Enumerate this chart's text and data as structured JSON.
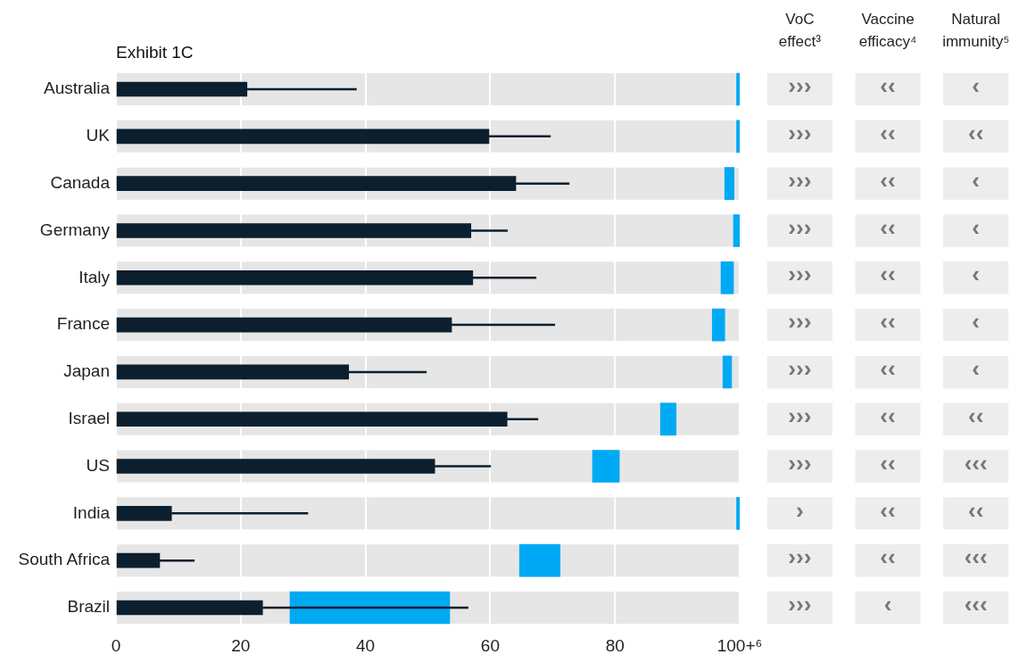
{
  "chart_data": [
    {
      "type": "bar",
      "orientation": "horizontal",
      "title": "Exhibit 1C",
      "categories": [
        "Australia",
        "UK",
        "Canada",
        "Germany",
        "Italy",
        "France",
        "Japan",
        "Israel",
        "US",
        "India",
        "South Africa",
        "Brazil"
      ],
      "series": [
        {
          "color": "#00a9f4",
          "base": [
            99.5,
            99.5,
            97.6,
            99.0,
            97.0,
            95.6,
            97.3,
            87.3,
            76.4,
            99.5,
            64.7,
            27.9
          ],
          "values": [
            0.5,
            0.5,
            1.5,
            1.0,
            2.0,
            2.0,
            1.4,
            2.5,
            4.3,
            0.5,
            6.5,
            25.6
          ]
        },
        {
          "color": "#0b1f2e",
          "values": [
            21.0,
            59.8,
            64.1,
            56.9,
            57.2,
            53.8,
            37.3,
            62.7,
            51.1,
            8.9,
            7.0,
            23.5
          ],
          "errors": [
            [
              21.0,
              38.6
            ],
            [
              59.8,
              69.7
            ],
            [
              64.1,
              72.7
            ],
            [
              56.9,
              62.8
            ],
            [
              57.2,
              67.4
            ],
            [
              53.8,
              70.4
            ],
            [
              37.3,
              49.8
            ],
            [
              62.7,
              67.7
            ],
            [
              51.1,
              60.1
            ],
            [
              8.9,
              30.8
            ],
            [
              7.0,
              12.6
            ],
            [
              23.5,
              56.5
            ]
          ]
        }
      ],
      "xlim": [
        0,
        100
      ],
      "xticks": [
        0,
        20,
        40,
        60,
        80,
        {
          "value": 100,
          "label": "100+⁶"
        }
      ],
      "grid": "x",
      "legend": false,
      "bands": [
        {
          "axis": "x",
          "from": 0,
          "to": 100,
          "color": "#e6e6e6"
        }
      ]
    },
    {
      "type": "other",
      "categories": [
        "VoC effect³",
        "Vaccine efficacy⁴",
        "Natural immunity⁵"
      ],
      "y_categories": [
        null,
        null,
        null,
        null,
        null,
        null,
        null,
        null,
        null,
        null,
        null,
        null
      ],
      "cell_labels": [
        [
          "›››",
          "‹‹",
          "‹"
        ],
        [
          "›››",
          "‹‹",
          "‹‹"
        ],
        [
          "›››",
          "‹‹",
          "‹"
        ],
        [
          "›››",
          "‹‹",
          "‹"
        ],
        [
          "›››",
          "‹‹",
          "‹"
        ],
        [
          "›››",
          "‹‹",
          "‹"
        ],
        [
          "›››",
          "‹‹",
          "‹"
        ],
        [
          "›››",
          "‹‹",
          "‹‹"
        ],
        [
          "›››",
          "‹‹",
          "‹‹‹"
        ],
        [
          "›",
          "‹‹",
          "‹‹"
        ],
        [
          "›››",
          "‹‹",
          "‹‹‹"
        ],
        [
          "›››",
          "‹",
          "‹‹‹"
        ]
      ]
    }
  ]
}
